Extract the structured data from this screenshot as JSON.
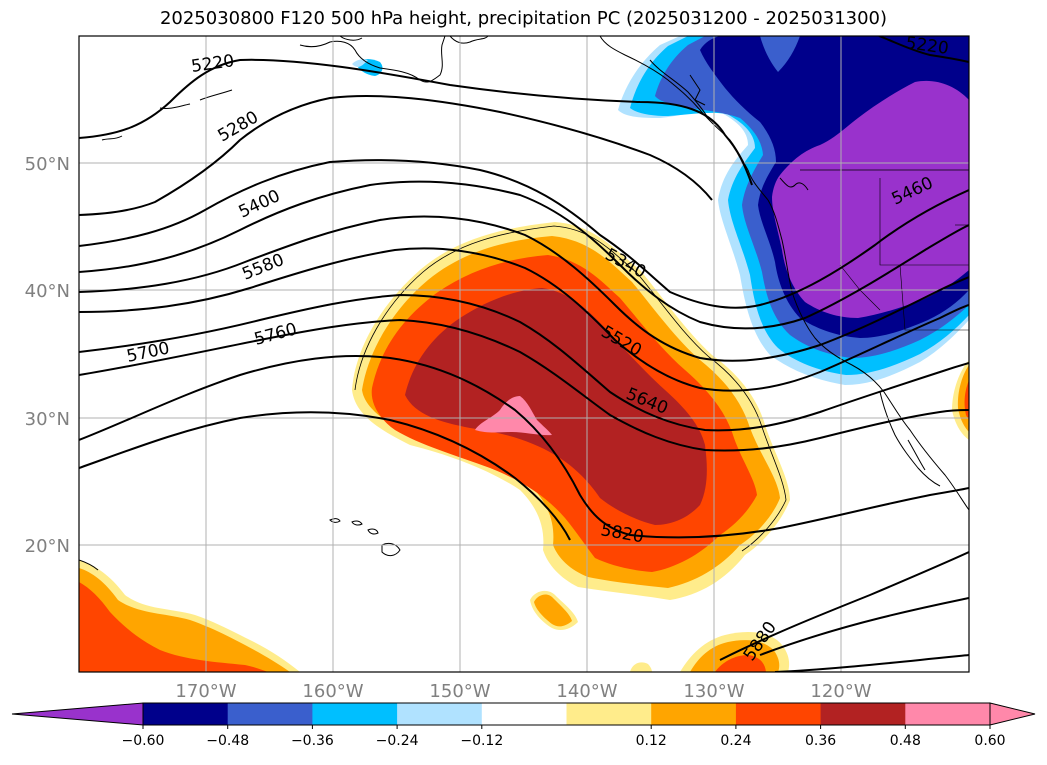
{
  "title": "2025030800 F120 500 hPa height, precipitation PC (2025031200 - 2025031300)",
  "map": {
    "lat_labels": [
      "50°N",
      "40°N",
      "30°N",
      "20°N"
    ],
    "lon_labels": [
      "170°W",
      "160°W",
      "150°W",
      "140°W",
      "130°W",
      "120°W"
    ],
    "contour_labels": [
      "5220",
      "5280",
      "5400",
      "5580",
      "5700",
      "5760",
      "5340",
      "5520",
      "5640",
      "5820",
      "5880",
      "5460",
      "5220"
    ]
  },
  "colorbar": {
    "ticks": [
      "−0.60",
      "−0.48",
      "−0.36",
      "−0.24",
      "−0.12",
      "0.12",
      "0.24",
      "0.36",
      "0.48",
      "0.60"
    ],
    "colors": [
      "#9932CC",
      "#00008B",
      "#3A5FCD",
      "#00BFFF",
      "#B0E2FF",
      "#FFFFFF",
      "#FFEC8B",
      "#FFA500",
      "#FF4500",
      "#B22222",
      "#FF88AA",
      "#FF88AA"
    ]
  },
  "colors": {
    "purple": "#9932CC",
    "navy": "#00008B",
    "blue": "#3A5FCD",
    "sky": "#00BFFF",
    "lightblue": "#B0E2FF",
    "yellow": "#FFEC8B",
    "orange": "#FFA500",
    "redorange": "#FF4500",
    "darkred": "#B22222",
    "pink": "#FF88AA",
    "grid": "#b0b0b0",
    "labels": "#808080"
  }
}
